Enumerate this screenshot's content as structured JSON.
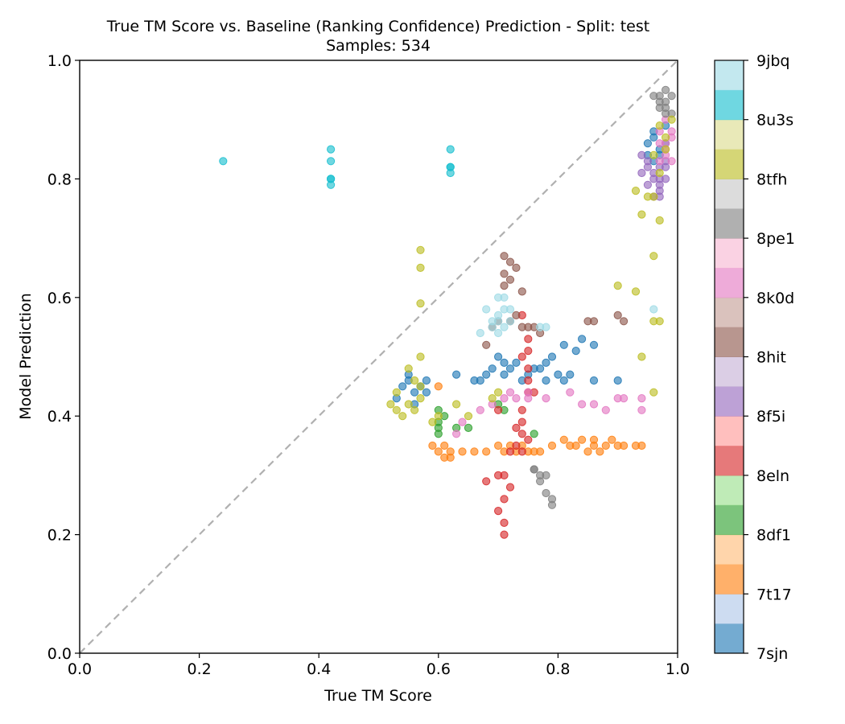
{
  "chart_data": {
    "type": "scatter",
    "title": "True TM Score vs. Baseline (Ranking Confidence) Prediction - Split: test",
    "subtitle": "Samples: 534",
    "xlabel": "True TM Score",
    "ylabel": "Model Prediction",
    "xlim": [
      0.0,
      1.0
    ],
    "ylim": [
      0.0,
      1.0
    ],
    "x_ticks": [
      "0.0",
      "0.2",
      "0.4",
      "0.6",
      "0.8",
      "1.0"
    ],
    "y_ticks": [
      "0.0",
      "0.2",
      "0.4",
      "0.6",
      "0.8",
      "1.0"
    ],
    "grid": false,
    "reference_line": "y = x (dashed, gray)",
    "colorbar": {
      "labels": [
        "7sjn",
        "7t17",
        "8df1",
        "8eln",
        "8f5i",
        "8hit",
        "8k0d",
        "8pe1",
        "8tfh",
        "8u3s",
        "9jbq"
      ],
      "colors": [
        "#1f77b4",
        "#aec7e8",
        "#ff7f0e",
        "#ffbb78",
        "#2ca02c",
        "#98df8a",
        "#d62728",
        "#ff9896",
        "#9467bd",
        "#c5b0d5",
        "#8c564b",
        "#c49c94",
        "#e377c2",
        "#f7b6d2",
        "#7f7f7f",
        "#c7c7c7",
        "#bcbd22",
        "#dbdb8d",
        "#17becf",
        "#9edae5"
      ]
    },
    "series": [
      {
        "name": "7sjn",
        "color": "#1f77b4",
        "points": [
          [
            0.53,
            0.43
          ],
          [
            0.54,
            0.45
          ],
          [
            0.55,
            0.47
          ],
          [
            0.55,
            0.46
          ],
          [
            0.56,
            0.44
          ],
          [
            0.57,
            0.45
          ],
          [
            0.58,
            0.46
          ],
          [
            0.58,
            0.44
          ],
          [
            0.56,
            0.42
          ],
          [
            0.63,
            0.47
          ],
          [
            0.66,
            0.46
          ],
          [
            0.67,
            0.46
          ],
          [
            0.68,
            0.47
          ],
          [
            0.69,
            0.48
          ],
          [
            0.7,
            0.5
          ],
          [
            0.71,
            0.49
          ],
          [
            0.71,
            0.47
          ],
          [
            0.72,
            0.48
          ],
          [
            0.73,
            0.49
          ],
          [
            0.74,
            0.46
          ],
          [
            0.75,
            0.47
          ],
          [
            0.76,
            0.48
          ],
          [
            0.77,
            0.48
          ],
          [
            0.78,
            0.49
          ],
          [
            0.79,
            0.5
          ],
          [
            0.8,
            0.47
          ],
          [
            0.81,
            0.52
          ],
          [
            0.82,
            0.47
          ],
          [
            0.83,
            0.51
          ],
          [
            0.84,
            0.53
          ],
          [
            0.86,
            0.52
          ],
          [
            0.86,
            0.46
          ],
          [
            0.9,
            0.46
          ],
          [
            0.78,
            0.46
          ],
          [
            0.81,
            0.46
          ],
          [
            0.95,
            0.86
          ],
          [
            0.96,
            0.88
          ],
          [
            0.97,
            0.85
          ],
          [
            0.96,
            0.87
          ],
          [
            0.98,
            0.89
          ],
          [
            0.97,
            0.84
          ],
          [
            0.98,
            0.86
          ],
          [
            0.95,
            0.84
          ],
          [
            0.96,
            0.83
          ]
        ]
      },
      {
        "name": "7t17",
        "color": "#ff7f0e",
        "points": [
          [
            0.6,
            0.45
          ],
          [
            0.6,
            0.34
          ],
          [
            0.61,
            0.33
          ],
          [
            0.62,
            0.33
          ],
          [
            0.62,
            0.34
          ],
          [
            0.64,
            0.34
          ],
          [
            0.66,
            0.34
          ],
          [
            0.68,
            0.34
          ],
          [
            0.7,
            0.35
          ],
          [
            0.71,
            0.34
          ],
          [
            0.72,
            0.35
          ],
          [
            0.73,
            0.34
          ],
          [
            0.74,
            0.35
          ],
          [
            0.75,
            0.34
          ],
          [
            0.76,
            0.34
          ],
          [
            0.77,
            0.34
          ],
          [
            0.79,
            0.35
          ],
          [
            0.81,
            0.36
          ],
          [
            0.82,
            0.35
          ],
          [
            0.83,
            0.35
          ],
          [
            0.84,
            0.36
          ],
          [
            0.85,
            0.34
          ],
          [
            0.86,
            0.35
          ],
          [
            0.86,
            0.36
          ],
          [
            0.87,
            0.34
          ],
          [
            0.88,
            0.35
          ],
          [
            0.89,
            0.36
          ],
          [
            0.9,
            0.35
          ],
          [
            0.91,
            0.35
          ],
          [
            0.93,
            0.35
          ],
          [
            0.94,
            0.35
          ],
          [
            0.59,
            0.35
          ],
          [
            0.61,
            0.35
          ]
        ]
      },
      {
        "name": "8df1",
        "color": "#2ca02c",
        "points": [
          [
            0.6,
            0.41
          ],
          [
            0.6,
            0.39
          ],
          [
            0.6,
            0.38
          ],
          [
            0.6,
            0.37
          ],
          [
            0.61,
            0.4
          ],
          [
            0.63,
            0.38
          ],
          [
            0.65,
            0.38
          ],
          [
            0.76,
            0.37
          ],
          [
            0.7,
            0.42
          ],
          [
            0.71,
            0.41
          ]
        ]
      },
      {
        "name": "8eln",
        "color": "#d62728",
        "points": [
          [
            0.7,
            0.3
          ],
          [
            0.7,
            0.24
          ],
          [
            0.71,
            0.26
          ],
          [
            0.71,
            0.2
          ],
          [
            0.71,
            0.22
          ],
          [
            0.71,
            0.3
          ],
          [
            0.72,
            0.28
          ],
          [
            0.72,
            0.34
          ],
          [
            0.73,
            0.35
          ],
          [
            0.74,
            0.34
          ],
          [
            0.74,
            0.37
          ],
          [
            0.74,
            0.39
          ],
          [
            0.74,
            0.41
          ],
          [
            0.75,
            0.36
          ],
          [
            0.75,
            0.44
          ],
          [
            0.75,
            0.46
          ],
          [
            0.76,
            0.44
          ],
          [
            0.74,
            0.5
          ],
          [
            0.75,
            0.51
          ],
          [
            0.75,
            0.53
          ],
          [
            0.74,
            0.57
          ],
          [
            0.75,
            0.48
          ],
          [
            0.68,
            0.29
          ],
          [
            0.7,
            0.41
          ],
          [
            0.73,
            0.38
          ]
        ]
      },
      {
        "name": "8f5i",
        "color": "#9467bd",
        "points": [
          [
            0.94,
            0.84
          ],
          [
            0.95,
            0.83
          ],
          [
            0.95,
            0.82
          ],
          [
            0.96,
            0.8
          ],
          [
            0.96,
            0.81
          ],
          [
            0.97,
            0.82
          ],
          [
            0.97,
            0.79
          ],
          [
            0.98,
            0.8
          ],
          [
            0.96,
            0.77
          ],
          [
            0.97,
            0.77
          ],
          [
            0.97,
            0.78
          ],
          [
            0.98,
            0.83
          ],
          [
            0.95,
            0.79
          ],
          [
            0.94,
            0.81
          ],
          [
            0.98,
            0.82
          ],
          [
            0.97,
            0.8
          ]
        ]
      },
      {
        "name": "8hit",
        "color": "#8c564b",
        "points": [
          [
            0.71,
            0.67
          ],
          [
            0.72,
            0.66
          ],
          [
            0.73,
            0.65
          ],
          [
            0.71,
            0.64
          ],
          [
            0.72,
            0.63
          ],
          [
            0.71,
            0.62
          ],
          [
            0.74,
            0.61
          ],
          [
            0.72,
            0.56
          ],
          [
            0.73,
            0.57
          ],
          [
            0.74,
            0.55
          ],
          [
            0.75,
            0.55
          ],
          [
            0.76,
            0.55
          ],
          [
            0.77,
            0.54
          ],
          [
            0.7,
            0.56
          ],
          [
            0.69,
            0.55
          ],
          [
            0.68,
            0.52
          ],
          [
            0.85,
            0.56
          ],
          [
            0.86,
            0.56
          ],
          [
            0.9,
            0.57
          ],
          [
            0.91,
            0.56
          ]
        ]
      },
      {
        "name": "8k0d",
        "color": "#e377c2",
        "points": [
          [
            0.67,
            0.41
          ],
          [
            0.69,
            0.42
          ],
          [
            0.71,
            0.43
          ],
          [
            0.72,
            0.44
          ],
          [
            0.73,
            0.43
          ],
          [
            0.75,
            0.44
          ],
          [
            0.75,
            0.43
          ],
          [
            0.78,
            0.43
          ],
          [
            0.82,
            0.44
          ],
          [
            0.84,
            0.42
          ],
          [
            0.86,
            0.42
          ],
          [
            0.88,
            0.41
          ],
          [
            0.9,
            0.43
          ],
          [
            0.91,
            0.43
          ],
          [
            0.94,
            0.43
          ],
          [
            0.94,
            0.41
          ],
          [
            0.64,
            0.39
          ],
          [
            0.63,
            0.37
          ],
          [
            0.97,
            0.88
          ],
          [
            0.98,
            0.86
          ],
          [
            0.98,
            0.84
          ],
          [
            0.97,
            0.86
          ],
          [
            0.99,
            0.87
          ],
          [
            0.98,
            0.9
          ],
          [
            0.99,
            0.83
          ],
          [
            0.97,
            0.83
          ],
          [
            0.98,
            0.85
          ],
          [
            0.99,
            0.88
          ]
        ]
      },
      {
        "name": "8pe1",
        "color": "#f7b6d2",
        "points": []
      },
      {
        "name": "8tfh",
        "color": "#7f7f7f",
        "points": [
          [
            0.76,
            0.31
          ],
          [
            0.77,
            0.3
          ],
          [
            0.77,
            0.29
          ],
          [
            0.78,
            0.3
          ],
          [
            0.78,
            0.27
          ],
          [
            0.79,
            0.26
          ],
          [
            0.79,
            0.25
          ],
          [
            0.76,
            0.31
          ],
          [
            0.96,
            0.94
          ],
          [
            0.97,
            0.93
          ],
          [
            0.98,
            0.95
          ],
          [
            0.97,
            0.92
          ],
          [
            0.98,
            0.93
          ],
          [
            0.99,
            0.94
          ],
          [
            0.98,
            0.92
          ],
          [
            0.99,
            0.91
          ],
          [
            0.97,
            0.94
          ],
          [
            0.98,
            0.91
          ]
        ]
      },
      {
        "name": "8u3s",
        "color": "#bcbd22",
        "points": [
          [
            0.52,
            0.42
          ],
          [
            0.53,
            0.41
          ],
          [
            0.53,
            0.44
          ],
          [
            0.54,
            0.4
          ],
          [
            0.55,
            0.42
          ],
          [
            0.55,
            0.48
          ],
          [
            0.56,
            0.46
          ],
          [
            0.56,
            0.41
          ],
          [
            0.57,
            0.45
          ],
          [
            0.57,
            0.43
          ],
          [
            0.57,
            0.5
          ],
          [
            0.57,
            0.59
          ],
          [
            0.57,
            0.65
          ],
          [
            0.57,
            0.68
          ],
          [
            0.59,
            0.39
          ],
          [
            0.6,
            0.4
          ],
          [
            0.63,
            0.42
          ],
          [
            0.65,
            0.4
          ],
          [
            0.69,
            0.43
          ],
          [
            0.7,
            0.44
          ],
          [
            0.93,
            0.78
          ],
          [
            0.94,
            0.74
          ],
          [
            0.95,
            0.77
          ],
          [
            0.96,
            0.77
          ],
          [
            0.97,
            0.73
          ],
          [
            0.96,
            0.67
          ],
          [
            0.9,
            0.62
          ],
          [
            0.93,
            0.61
          ],
          [
            0.94,
            0.5
          ],
          [
            0.96,
            0.44
          ],
          [
            0.97,
            0.56
          ],
          [
            0.96,
            0.56
          ],
          [
            0.97,
            0.81
          ],
          [
            0.98,
            0.85
          ],
          [
            0.99,
            0.9
          ],
          [
            0.97,
            0.89
          ],
          [
            0.98,
            0.87
          ],
          [
            0.96,
            0.84
          ]
        ]
      },
      {
        "name": "9jbq",
        "color": "#17becf",
        "points": [
          [
            0.24,
            0.83
          ],
          [
            0.42,
            0.85
          ],
          [
            0.42,
            0.83
          ],
          [
            0.42,
            0.8
          ],
          [
            0.42,
            0.8
          ],
          [
            0.42,
            0.79
          ],
          [
            0.62,
            0.85
          ],
          [
            0.62,
            0.82
          ],
          [
            0.62,
            0.82
          ],
          [
            0.62,
            0.81
          ]
        ]
      },
      {
        "name": "9jbq-light",
        "color": "#9edae5",
        "points": [
          [
            0.68,
            0.58
          ],
          [
            0.69,
            0.56
          ],
          [
            0.69,
            0.55
          ],
          [
            0.7,
            0.56
          ],
          [
            0.7,
            0.57
          ],
          [
            0.7,
            0.6
          ],
          [
            0.71,
            0.6
          ],
          [
            0.71,
            0.58
          ],
          [
            0.72,
            0.58
          ],
          [
            0.72,
            0.56
          ],
          [
            0.7,
            0.54
          ],
          [
            0.71,
            0.55
          ],
          [
            0.67,
            0.54
          ],
          [
            0.77,
            0.55
          ],
          [
            0.78,
            0.55
          ],
          [
            0.96,
            0.58
          ]
        ]
      }
    ]
  }
}
